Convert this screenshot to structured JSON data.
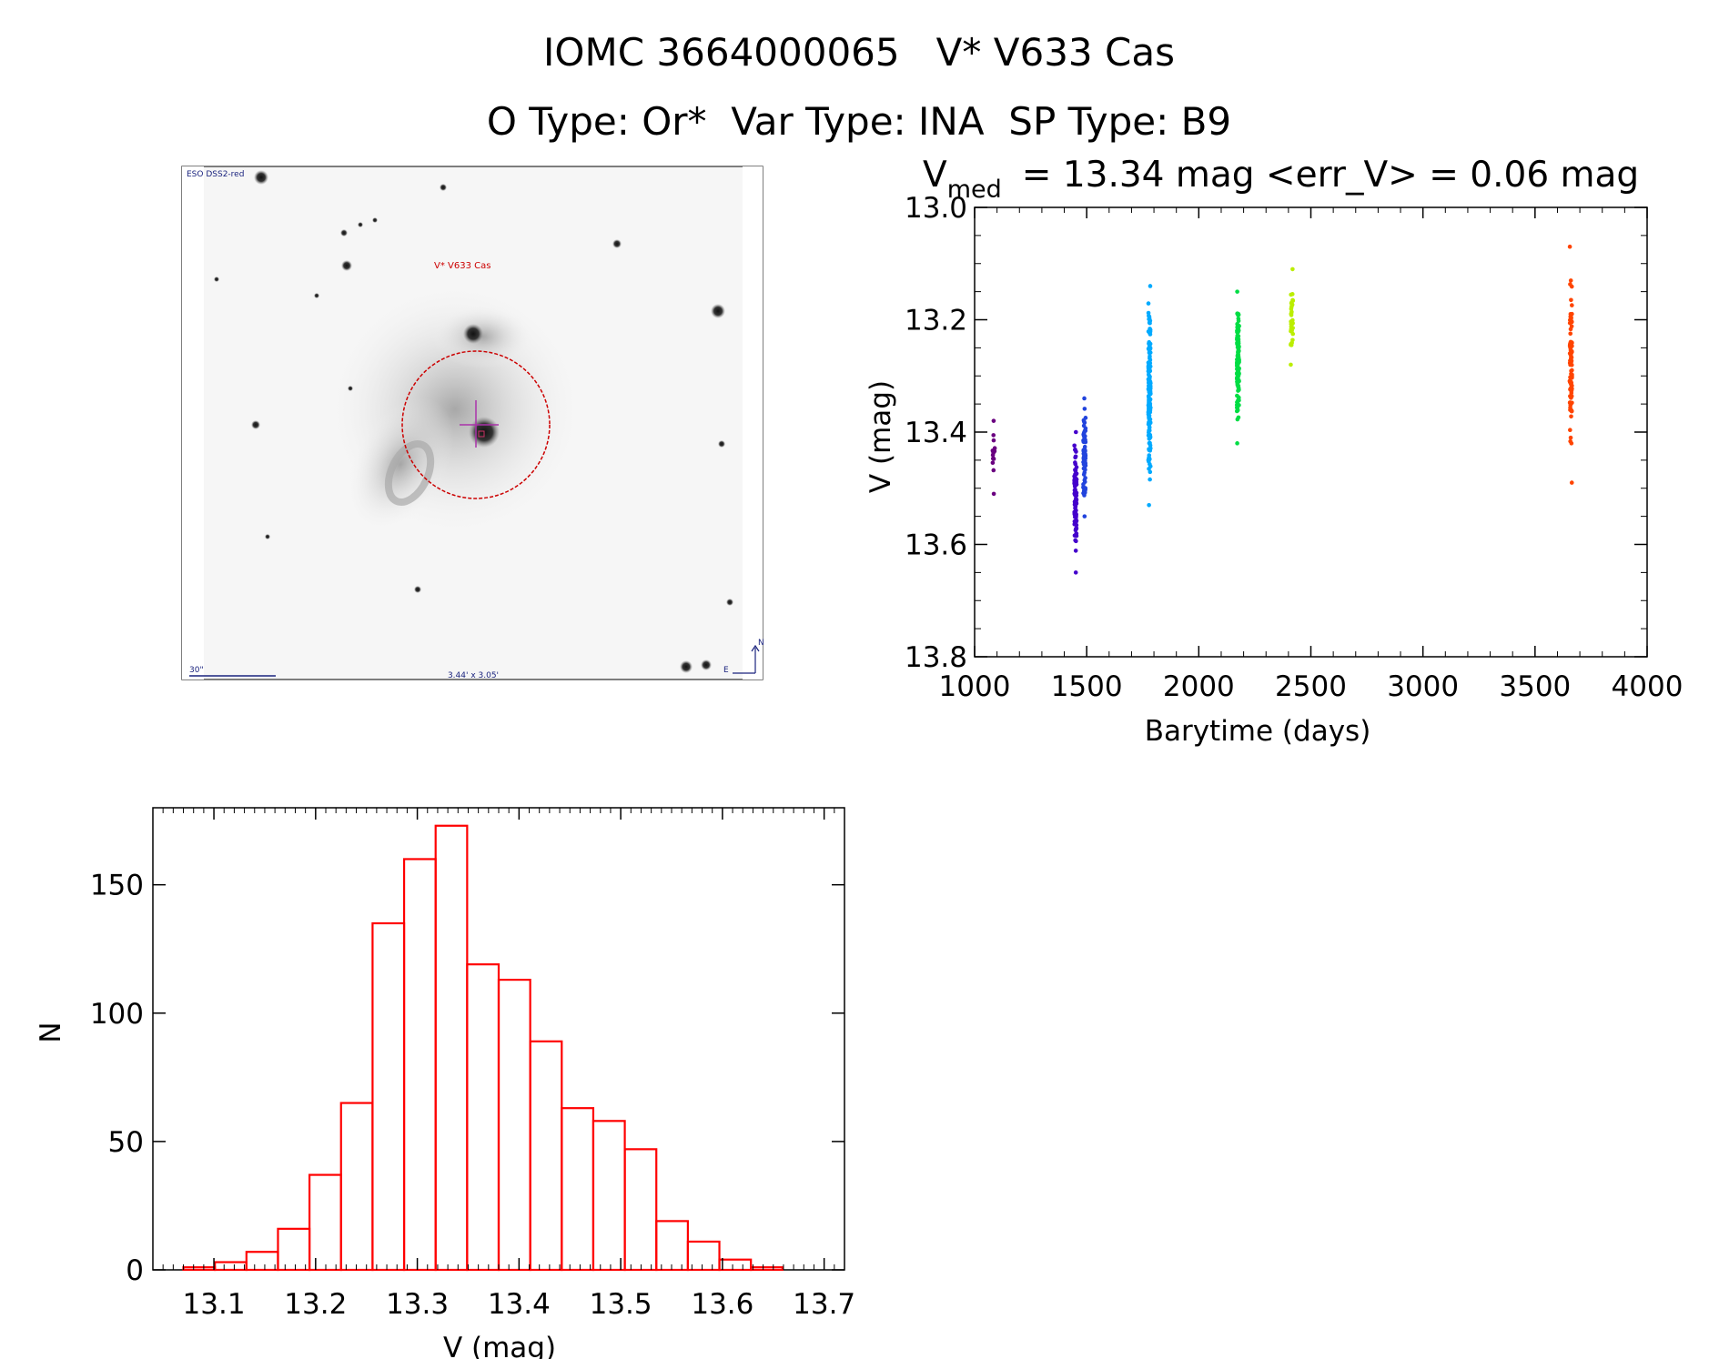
{
  "header": {
    "title": "IOMC 3664000065   V* V633 Cas",
    "subtitle": "O Type: Or*  Var Type: INA  SP Type: B9"
  },
  "thumbnail": {
    "survey_label": "ESO DSS2-red",
    "target_label": "V* V633 Cas",
    "scale_label": "30\"",
    "fov_label": "3.44' x 3.05'",
    "north_label": "N",
    "east_label": "E"
  },
  "colors": {
    "histogram_bar": "#ff0000",
    "target_circle": "#cc0000",
    "crosshair": "#aa33aa"
  },
  "chart_data": [
    {
      "type": "scatter",
      "title_parts": {
        "symbol": "V",
        "subscript": "med",
        "rest": "= 13.34 mag <err_V> = 0.06 mag"
      },
      "xlabel": "Barytime (days)",
      "ylabel": "V (mag)",
      "xlim": [
        1000,
        4000
      ],
      "ylim": [
        13.0,
        13.8
      ],
      "y_inverted": true,
      "xticks": [
        1000,
        1500,
        2000,
        2500,
        3000,
        3500,
        4000
      ],
      "yticks": [
        "13.0",
        "13.2",
        "13.4",
        "13.6",
        "13.8"
      ],
      "groups": [
        {
          "x": 1085,
          "ymin": 13.38,
          "ymax": 13.51,
          "n": 16,
          "color": "#6a0080"
        },
        {
          "x": 1450,
          "ymin": 13.4,
          "ymax": 13.65,
          "n": 90,
          "color": "#4400cc"
        },
        {
          "x": 1490,
          "ymin": 13.34,
          "ymax": 13.55,
          "n": 70,
          "color": "#2244dd"
        },
        {
          "x": 1780,
          "ymin": 13.14,
          "ymax": 13.53,
          "n": 160,
          "color": "#00aaff"
        },
        {
          "x": 2175,
          "ymin": 13.15,
          "ymax": 13.42,
          "n": 120,
          "color": "#00dd44"
        },
        {
          "x": 2415,
          "ymin": 13.11,
          "ymax": 13.28,
          "n": 35,
          "color": "#bbee00"
        },
        {
          "x": 3660,
          "ymin": 13.07,
          "ymax": 13.49,
          "n": 90,
          "color": "#ff4400"
        }
      ]
    },
    {
      "type": "bar",
      "xlabel": "V (mag)",
      "ylabel": "N",
      "xlim": [
        13.04,
        13.72
      ],
      "ylim": [
        0,
        180
      ],
      "xticks": [
        "13.1",
        "13.2",
        "13.3",
        "13.4",
        "13.5",
        "13.6",
        "13.7"
      ],
      "yticks": [
        0,
        50,
        100,
        150
      ],
      "bin_width": 0.031,
      "bin_start": 13.07,
      "counts": [
        1,
        3,
        7,
        16,
        37,
        65,
        135,
        160,
        173,
        119,
        113,
        89,
        63,
        58,
        47,
        19,
        11,
        4,
        1
      ]
    }
  ]
}
